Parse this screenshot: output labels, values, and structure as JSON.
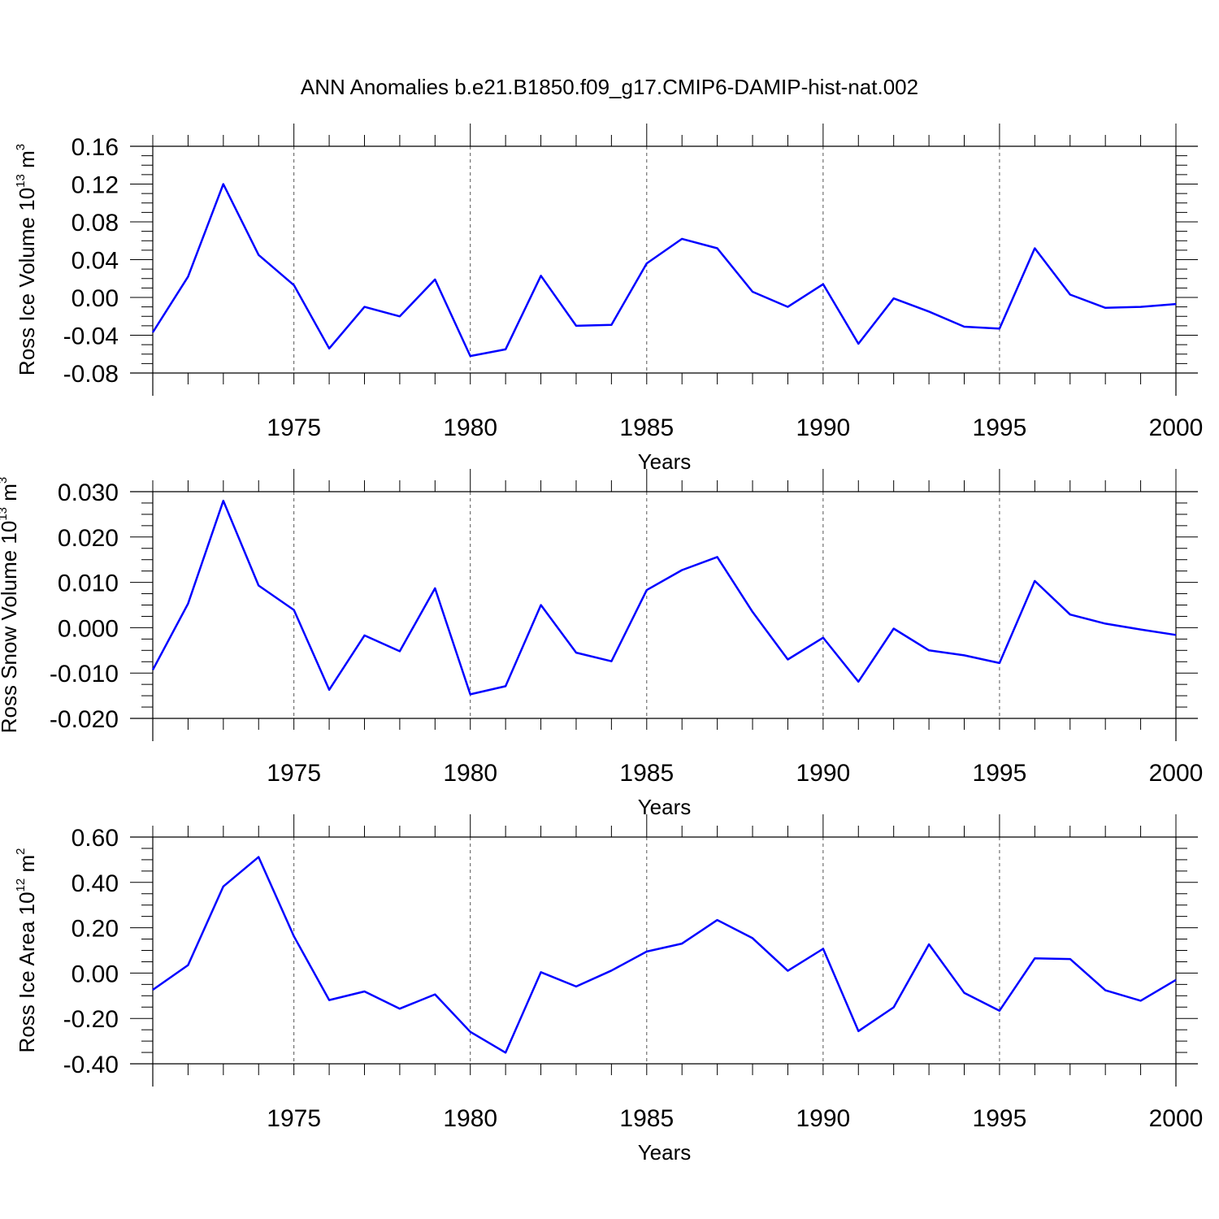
{
  "title": "ANN Anomalies b.e21.B1850.f09_g17.CMIP6-DAMIP-hist-nat.002",
  "colors": {
    "line": "#0000ff",
    "axis": "#000000",
    "grid": "#555555"
  },
  "chart_data": [
    {
      "type": "line",
      "xlabel": "Years",
      "ylabel": {
        "text": "Ross Ice Volume 10",
        "exp": "13",
        "unit": " m",
        "unit_exp": "3"
      },
      "xlim": [
        1971,
        2000
      ],
      "ylim": [
        -0.08,
        0.16
      ],
      "xticks": [
        1975,
        1980,
        1985,
        1990,
        1995,
        2000
      ],
      "yticks": [
        "-0.08",
        "-0.04",
        "0.00",
        "0.04",
        "0.08",
        "0.12",
        "0.16"
      ],
      "grid": "vertical dashed at major x ticks",
      "x": [
        1971,
        1972,
        1973,
        1974,
        1975,
        1976,
        1977,
        1978,
        1979,
        1980,
        1981,
        1982,
        1983,
        1984,
        1985,
        1986,
        1987,
        1988,
        1989,
        1990,
        1991,
        1992,
        1993,
        1994,
        1995,
        1996,
        1997,
        1998,
        1999,
        2000
      ],
      "values": [
        -0.037,
        0.022,
        0.12,
        0.045,
        0.013,
        -0.054,
        -0.01,
        -0.02,
        0.019,
        -0.062,
        -0.055,
        0.023,
        -0.03,
        -0.029,
        0.036,
        0.062,
        0.052,
        0.006,
        -0.01,
        0.014,
        -0.049,
        -0.001,
        -0.015,
        -0.031,
        -0.033,
        0.052,
        0.003,
        -0.011,
        -0.01,
        -0.007
      ]
    },
    {
      "type": "line",
      "xlabel": "Years",
      "ylabel": {
        "text": "Ross Snow Volume 10",
        "exp": "13",
        "unit": " m",
        "unit_exp": "3"
      },
      "xlim": [
        1971,
        2000
      ],
      "ylim": [
        -0.02,
        0.03
      ],
      "xticks": [
        1975,
        1980,
        1985,
        1990,
        1995,
        2000
      ],
      "yticks": [
        "-0.020",
        "-0.010",
        "0.000",
        "0.010",
        "0.020",
        "0.030"
      ],
      "grid": "vertical dashed at major x ticks",
      "x": [
        1971,
        1972,
        1973,
        1974,
        1975,
        1976,
        1977,
        1978,
        1979,
        1980,
        1981,
        1982,
        1983,
        1984,
        1985,
        1986,
        1987,
        1988,
        1989,
        1990,
        1991,
        1992,
        1993,
        1994,
        1995,
        1996,
        1997,
        1998,
        1999,
        2000
      ],
      "values": [
        -0.0093,
        0.0053,
        0.028,
        0.0093,
        0.0039,
        -0.0137,
        -0.0017,
        -0.0052,
        0.0087,
        -0.0147,
        -0.0129,
        0.005,
        -0.0055,
        -0.0074,
        0.0083,
        0.0127,
        0.0156,
        0.0035,
        -0.007,
        -0.0022,
        -0.0119,
        -0.0002,
        -0.005,
        -0.0061,
        -0.0078,
        0.0103,
        0.0029,
        0.0009,
        -0.0004,
        -0.0016
      ]
    },
    {
      "type": "line",
      "xlabel": "Years",
      "ylabel": {
        "text": "Ross Ice Area 10",
        "exp": "12",
        "unit": " m",
        "unit_exp": "2"
      },
      "xlim": [
        1971,
        2000
      ],
      "ylim": [
        -0.4,
        0.6
      ],
      "xticks": [
        1975,
        1980,
        1985,
        1990,
        1995,
        2000
      ],
      "yticks": [
        "-0.40",
        "-0.20",
        "0.00",
        "0.20",
        "0.40",
        "0.60"
      ],
      "grid": "vertical dashed at major x ticks",
      "x": [
        1971,
        1972,
        1973,
        1974,
        1975,
        1976,
        1977,
        1978,
        1979,
        1980,
        1981,
        1982,
        1983,
        1984,
        1985,
        1986,
        1987,
        1988,
        1989,
        1990,
        1991,
        1992,
        1993,
        1994,
        1995,
        1996,
        1997,
        1998,
        1999,
        2000
      ],
      "values": [
        -0.074,
        0.035,
        0.382,
        0.512,
        0.162,
        -0.119,
        -0.081,
        -0.157,
        -0.094,
        -0.259,
        -0.351,
        0.004,
        -0.059,
        0.011,
        0.095,
        0.13,
        0.234,
        0.154,
        0.01,
        0.107,
        -0.256,
        -0.151,
        0.127,
        -0.087,
        -0.166,
        0.065,
        0.062,
        -0.076,
        -0.122,
        -0.03
      ]
    }
  ]
}
